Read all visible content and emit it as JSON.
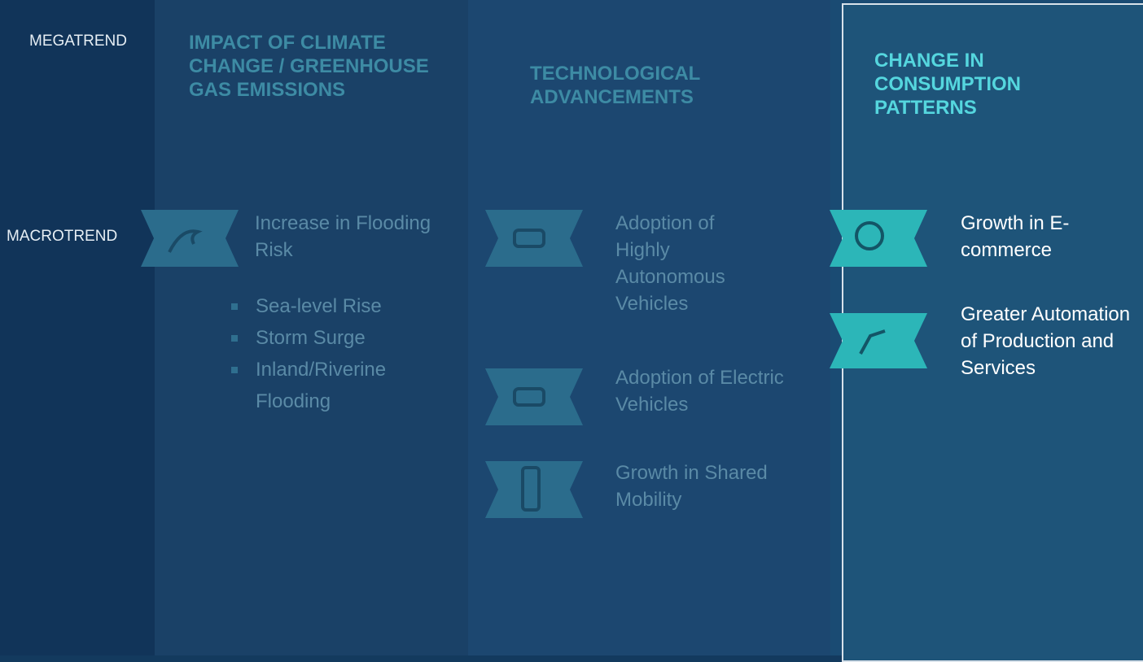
{
  "row_labels": {
    "megatrend": "MEGATREND",
    "macrotrend": "MACROTREND"
  },
  "columns": [
    {
      "title": "IMPACT OF CLIMATE CHANGE / GREENHOUSE GAS EMISSIONS",
      "items": [
        {
          "label": "Increase in Flooding Risk",
          "bullets": [
            "Sea-level Rise",
            "Storm Surge",
            "Inland/Riverine Flooding"
          ]
        }
      ]
    },
    {
      "title": "TECHNOLOGICAL ADVANCEMENTS",
      "items": [
        {
          "label": "Adoption of Highly Autonomous Vehicles"
        },
        {
          "label": "Adoption of Electric Vehicles"
        },
        {
          "label": "Growth in Shared Mobility"
        }
      ]
    },
    {
      "title": "CHANGE IN CONSUMPTION PATTERNS",
      "items": [
        {
          "label": "Growth in E-commerce"
        },
        {
          "label": "Greater Automation of Production and Services"
        }
      ]
    }
  ]
}
